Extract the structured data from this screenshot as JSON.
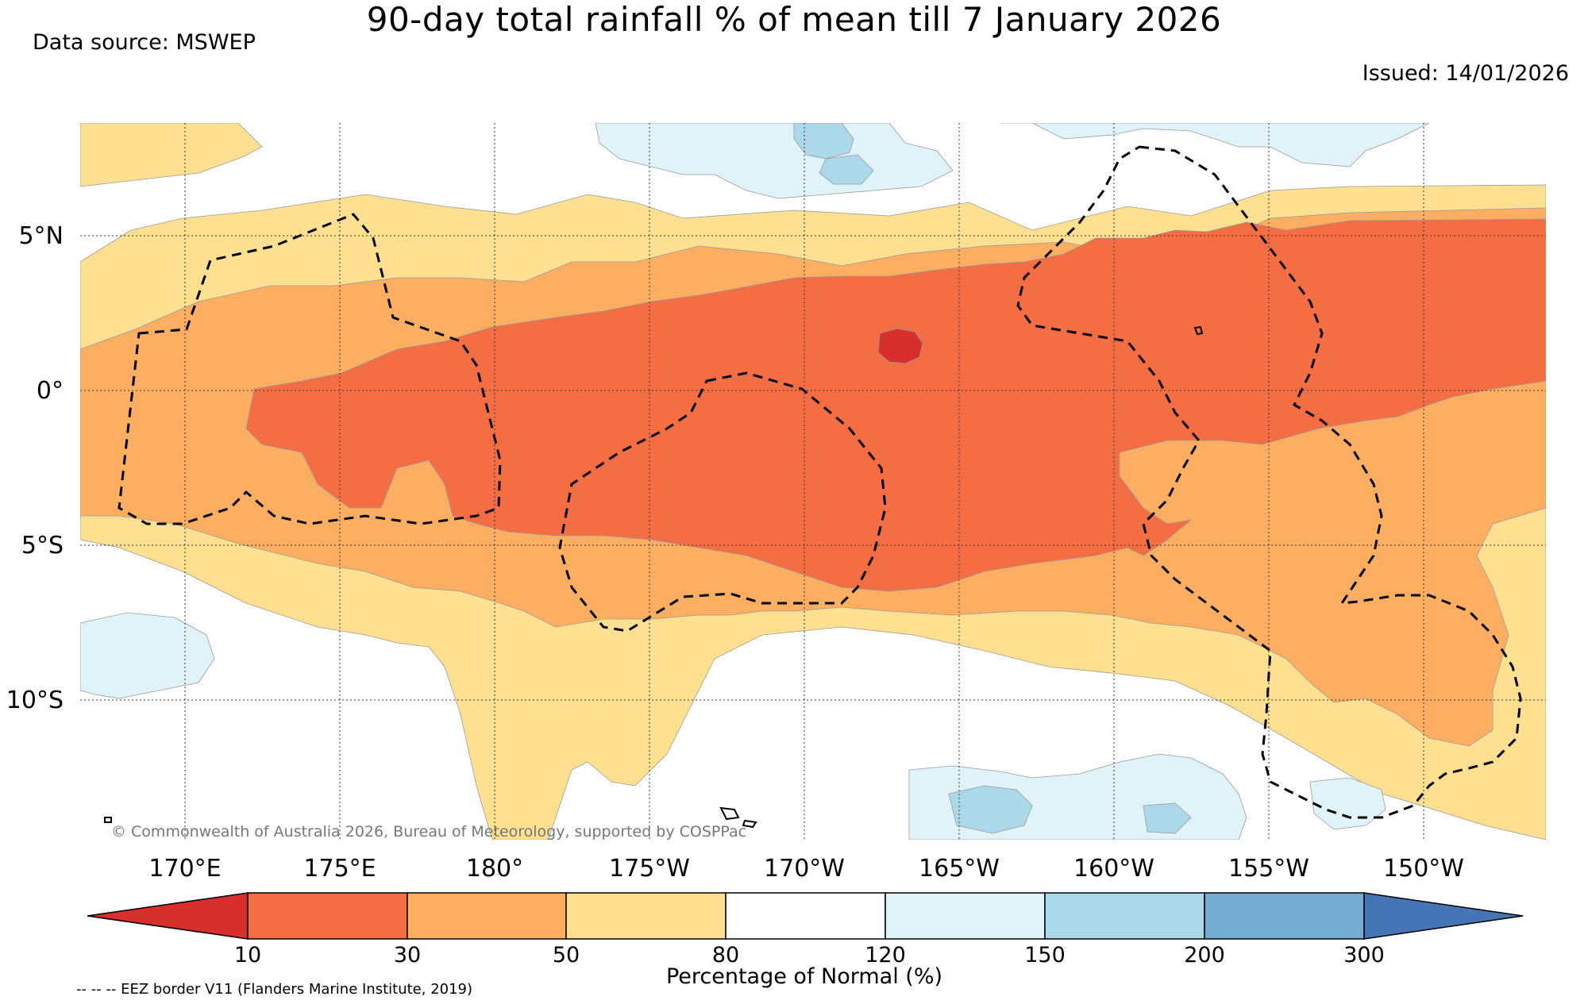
{
  "title": "90-day total rainfall % of mean till 7 January 2026",
  "data_source": "Data source: MSWEP",
  "issued": "Issued: 14/01/2026",
  "copyright": "© Commonwealth of Australia 2026, Bureau of Meteorology, supported by COSPPac",
  "lat_labels": [
    "5°N",
    "0°",
    "5°S",
    "10°S"
  ],
  "lon_labels": [
    "170°E",
    "175°E",
    "180°",
    "175°W",
    "170°W",
    "165°W",
    "160°W",
    "155°W",
    "150°W"
  ],
  "legend": {
    "title": "Percentage of Normal (%)",
    "ticks": [
      "10",
      "30",
      "50",
      "80",
      "120",
      "150",
      "200",
      "300"
    ],
    "colors": {
      "lt10": "#d7302c",
      "b10_30": "#f46d43",
      "b30_50": "#fdae61",
      "b50_80": "#fee090",
      "b80_120": "#ffffff",
      "b120_150": "#e0f3f8",
      "b150_200": "#abd9e9",
      "b200_300": "#74add1",
      "gt300": "#4575b4"
    }
  },
  "eez_note": "-- -- -- EEZ border V11 (Flanders Marine Institute, 2019)"
}
